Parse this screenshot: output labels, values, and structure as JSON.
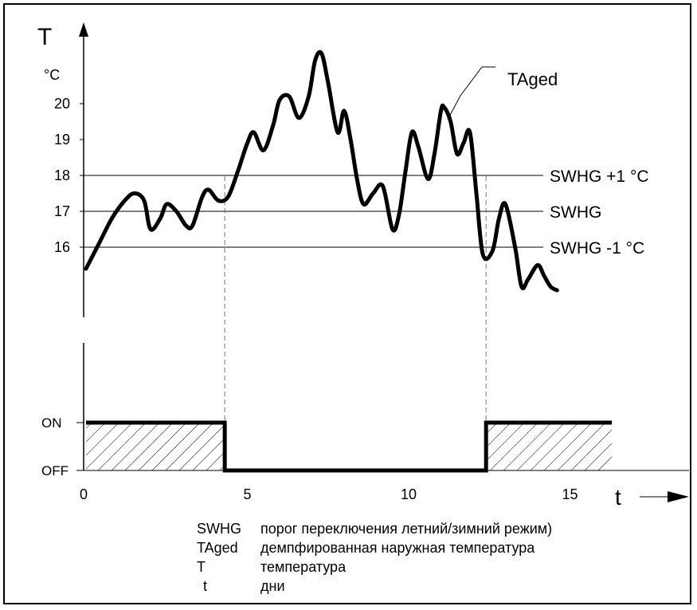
{
  "chart_data": {
    "type": "line",
    "y_axis_symbol": "T",
    "y_axis_unit": "°C",
    "x_axis_symbol": "t",
    "x_ticks": [
      0,
      5,
      10,
      15
    ],
    "y_ticks": [
      16,
      17,
      18,
      19,
      20
    ],
    "xlim": [
      0,
      16.5
    ],
    "ylim": [
      14.2,
      21.3
    ],
    "series": [
      {
        "name": "TAged",
        "x": [
          0.0,
          0.4,
          0.8,
          1.2,
          1.5,
          1.8,
          2.0,
          2.3,
          2.5,
          2.8,
          3.1,
          3.3,
          3.6,
          3.8,
          4.1,
          4.4,
          4.7,
          5.0,
          5.2,
          5.5,
          5.8,
          6.0,
          6.3,
          6.6,
          6.9,
          7.1,
          7.3,
          7.5,
          7.8,
          8.0,
          8.2,
          8.4,
          8.6,
          8.9,
          9.2,
          9.5,
          9.7,
          9.9,
          10.1,
          10.3,
          10.6,
          10.8,
          11.0,
          11.1,
          11.3,
          11.5,
          11.7,
          11.9,
          12.1,
          12.3,
          12.6,
          12.8,
          13.0,
          13.3,
          13.5,
          13.7,
          14.0,
          14.2,
          14.4,
          14.6
        ],
        "y": [
          15.4,
          16.1,
          16.8,
          17.3,
          17.5,
          17.3,
          16.5,
          16.8,
          17.2,
          17.0,
          16.6,
          16.6,
          17.4,
          17.6,
          17.3,
          17.4,
          18.1,
          18.9,
          19.2,
          18.7,
          19.4,
          20.1,
          20.2,
          19.6,
          20.2,
          21.2,
          21.4,
          20.6,
          19.2,
          19.8,
          19.0,
          17.9,
          17.2,
          17.5,
          17.7,
          16.5,
          16.9,
          18.1,
          19.2,
          18.8,
          17.9,
          18.6,
          19.8,
          19.9,
          19.5,
          18.6,
          18.9,
          19.2,
          17.5,
          15.8,
          15.9,
          16.8,
          17.2,
          16.0,
          14.9,
          15.1,
          15.5,
          15.2,
          14.9,
          14.8
        ]
      }
    ],
    "lines": [
      {
        "y": 18,
        "label": "SWHG +1 °C"
      },
      {
        "y": 17,
        "label": "SWHG"
      },
      {
        "y": 16,
        "label": "SWHG  -1 °C"
      }
    ],
    "series_label": "TAged",
    "switch_states": [
      "ON",
      "OFF"
    ],
    "switch_segments": [
      {
        "from": 0,
        "to": 4.3,
        "state": "ON"
      },
      {
        "from": 4.3,
        "to": 12.4,
        "state": "OFF"
      },
      {
        "from": 12.4,
        "to": 16.3,
        "state": "ON"
      }
    ],
    "switch_times": [
      4.3,
      12.4
    ]
  },
  "legend": [
    {
      "abbr": "SWHG",
      "desc": "порог переключения летний/зимний режим)"
    },
    {
      "abbr": "TAged",
      "desc": "демпфированная наружная температура"
    },
    {
      "abbr": "T",
      "desc": "температура"
    },
    {
      "abbr": "t",
      "desc": "дни"
    }
  ]
}
